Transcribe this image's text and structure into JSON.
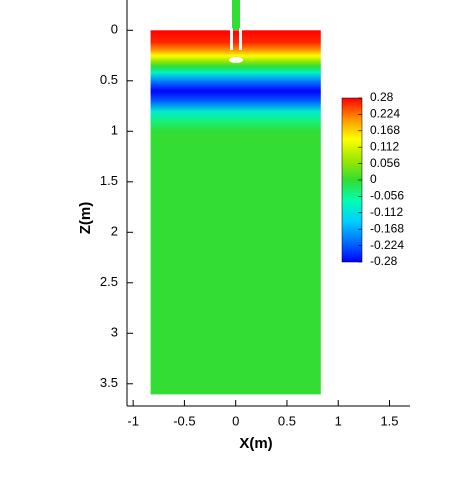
{
  "chart_data": {
    "type": "contour",
    "xlabel": "X(m)",
    "ylabel": "Z(m)",
    "xlim": [
      -1.06,
      1.7
    ],
    "xticks": [
      -1,
      -0.5,
      0,
      0.5,
      1,
      1.5
    ],
    "ylim": [
      -0.3,
      3.72
    ],
    "yticks": [
      0,
      0.5,
      1,
      1.5,
      2,
      2.5,
      3,
      3.5
    ],
    "y_inverted": true,
    "domain_x": [
      -0.83,
      0.83
    ],
    "z": [
      0,
      0.12,
      0.2,
      0.25,
      0.3,
      0.35,
      0.42,
      0.5,
      0.6,
      0.7,
      0.8,
      0.9,
      1.0,
      3.6
    ],
    "values": [
      0.28,
      0.26,
      0.2,
      0.14,
      0.07,
      0.0,
      -0.09,
      -0.2,
      -0.28,
      -0.22,
      -0.1,
      -0.04,
      0,
      0
    ],
    "clim": [
      -0.28,
      0.28
    ],
    "colormap": [
      "#0000ff",
      "#0070ff",
      "#00d0ff",
      "#00ffb0",
      "#33dd33",
      "#a0e800",
      "#ffff00",
      "#ff9000",
      "#ff0000"
    ],
    "colorbar_ticks": [
      0.28,
      0.224,
      0.168,
      0.112,
      0.056,
      0,
      -0.056,
      -0.112,
      -0.168,
      -0.224,
      -0.28
    ]
  }
}
